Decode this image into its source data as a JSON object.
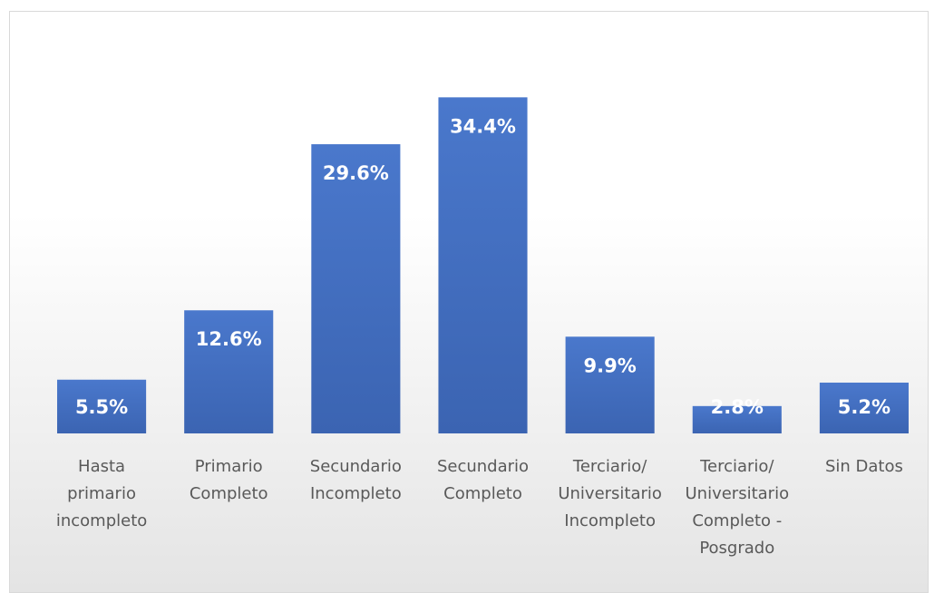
{
  "chart_data": {
    "type": "bar",
    "categories": [
      "Hasta\nprimario\nincompleto",
      "Primario\nCompleto",
      "Secundario\nIncompleto",
      "Secundario\nCompleto",
      "Terciario/\nUniversitario\nIncompleto",
      "Terciario/\nUniversitario\nCompleto -\nPosgrado",
      "Sin Datos"
    ],
    "values": [
      5.5,
      12.6,
      29.6,
      34.4,
      9.9,
      2.8,
      5.2
    ],
    "value_labels": [
      "5.5%",
      "12.6%",
      "29.6%",
      "34.4%",
      "9.9%",
      "2.8%",
      "5.2%"
    ],
    "color": "#4472c4",
    "ylim": [
      0,
      40
    ]
  }
}
